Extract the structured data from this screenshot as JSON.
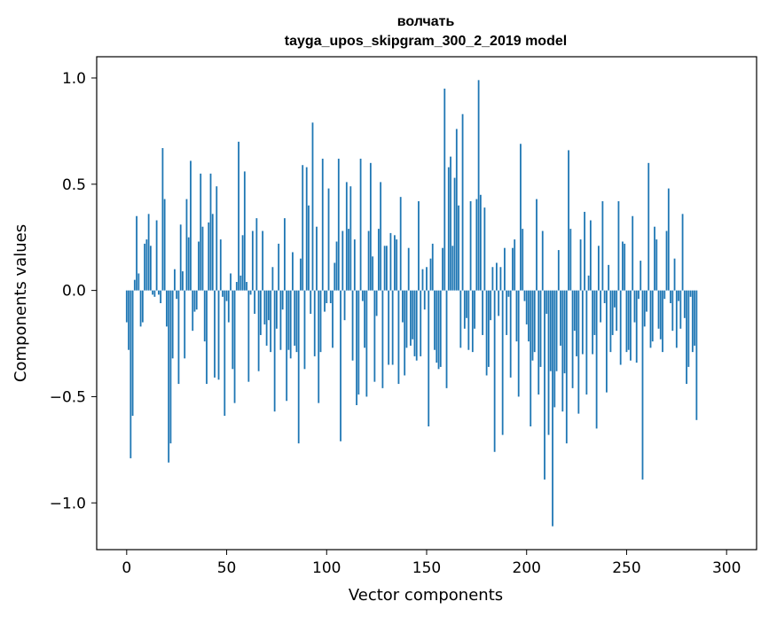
{
  "chart_data": {
    "type": "bar",
    "title": "волчать",
    "subtitle": "tayga_upos_skipgram_300_2_2019 model",
    "xlabel": "Vector components",
    "ylabel": "Components values",
    "xlim": [
      -15,
      315
    ],
    "ylim": [
      -1.22,
      1.1
    ],
    "xticks": [
      0,
      50,
      100,
      150,
      200,
      250,
      300
    ],
    "xtick_labels": [
      "0",
      "50",
      "100",
      "150",
      "200",
      "250",
      "300"
    ],
    "yticks": [
      -1.0,
      -0.5,
      0.0,
      0.5,
      1.0
    ],
    "ytick_labels": [
      "−1.0",
      "−0.5",
      "0.0",
      "0.5",
      "1.0"
    ],
    "grid": false,
    "bar_color": "#1f77b4",
    "series": [
      {
        "values": [
          -0.15,
          -0.28,
          -0.79,
          -0.59,
          0.05,
          0.35,
          0.08,
          -0.17,
          -0.15,
          0.22,
          0.24,
          0.36,
          0.21,
          -0.02,
          -0.03,
          0.33,
          -0.02,
          -0.06,
          0.67,
          0.43,
          -0.17,
          -0.81,
          -0.72,
          -0.32,
          0.1,
          -0.04,
          -0.44,
          0.31,
          0.09,
          -0.32,
          0.43,
          0.25,
          0.61,
          -0.19,
          -0.1,
          -0.09,
          0.23,
          0.55,
          0.3,
          -0.24,
          -0.44,
          0.32,
          0.55,
          0.36,
          -0.41,
          0.49,
          -0.42,
          0.24,
          -0.03,
          -0.59,
          -0.05,
          -0.15,
          0.08,
          -0.37,
          -0.53,
          0.04,
          0.7,
          0.07,
          0.26,
          0.56,
          0.04,
          -0.43,
          -0.02,
          0.28,
          -0.11,
          0.34,
          -0.38,
          -0.21,
          0.28,
          -0.16,
          -0.26,
          -0.14,
          -0.29,
          0.11,
          -0.57,
          -0.18,
          0.22,
          -0.28,
          -0.09,
          0.34,
          -0.52,
          -0.28,
          -0.32,
          0.18,
          -0.26,
          -0.29,
          -0.72,
          0.15,
          0.59,
          -0.37,
          0.58,
          0.4,
          -0.11,
          0.79,
          -0.31,
          0.3,
          -0.53,
          -0.29,
          0.62,
          -0.1,
          -0.06,
          0.48,
          -0.06,
          -0.27,
          0.13,
          0.23,
          0.62,
          -0.71,
          0.28,
          -0.14,
          0.51,
          0.29,
          0.49,
          -0.33,
          0.24,
          -0.54,
          -0.49,
          0.62,
          -0.05,
          -0.27,
          -0.5,
          0.28,
          0.6,
          0.16,
          -0.43,
          -0.12,
          0.29,
          0.51,
          -0.46,
          0.21,
          0.21,
          -0.35,
          0.27,
          -0.35,
          0.26,
          0.24,
          -0.44,
          0.44,
          -0.15,
          -0.4,
          -0.27,
          0.2,
          -0.26,
          -0.23,
          -0.31,
          -0.33,
          0.42,
          -0.31,
          0.1,
          -0.09,
          0.11,
          -0.64,
          0.15,
          0.22,
          -0.28,
          -0.34,
          -0.37,
          -0.36,
          0.2,
          0.95,
          -0.46,
          0.58,
          0.63,
          0.21,
          0.53,
          0.76,
          0.4,
          -0.27,
          0.83,
          -0.18,
          -0.13,
          -0.28,
          0.42,
          -0.29,
          -0.18,
          0.43,
          0.99,
          0.45,
          -0.21,
          0.39,
          -0.4,
          -0.36,
          -0.14,
          0.11,
          -0.76,
          0.13,
          -0.12,
          0.11,
          -0.68,
          0.2,
          -0.21,
          -0.03,
          -0.41,
          0.2,
          0.24,
          -0.24,
          -0.5,
          0.69,
          0.29,
          -0.05,
          -0.16,
          -0.24,
          -0.64,
          -0.33,
          -0.29,
          0.43,
          -0.49,
          -0.36,
          0.28,
          -0.89,
          -0.11,
          -0.68,
          -0.38,
          -1.11,
          -0.55,
          -0.38,
          0.19,
          -0.26,
          -0.57,
          -0.39,
          -0.72,
          0.66,
          0.29,
          -0.46,
          -0.19,
          -0.31,
          -0.58,
          0.24,
          -0.3,
          0.37,
          -0.49,
          0.07,
          0.33,
          -0.3,
          -0.21,
          -0.65,
          0.21,
          -0.15,
          0.42,
          -0.06,
          -0.48,
          0.12,
          -0.29,
          -0.21,
          -0.08,
          -0.19,
          0.42,
          -0.35,
          0.23,
          0.22,
          -0.29,
          -0.28,
          -0.33,
          0.35,
          -0.15,
          -0.34,
          -0.04,
          0.14,
          -0.89,
          -0.17,
          -0.1,
          0.6,
          -0.27,
          -0.24,
          0.3,
          0.24,
          -0.18,
          -0.23,
          -0.29,
          -0.04,
          0.28,
          0.48,
          -0.06,
          -0.19,
          0.15,
          -0.27,
          -0.05,
          -0.18,
          0.36,
          -0.13,
          -0.44,
          -0.36,
          -0.03,
          -0.29,
          -0.26,
          -0.61
        ]
      }
    ]
  }
}
